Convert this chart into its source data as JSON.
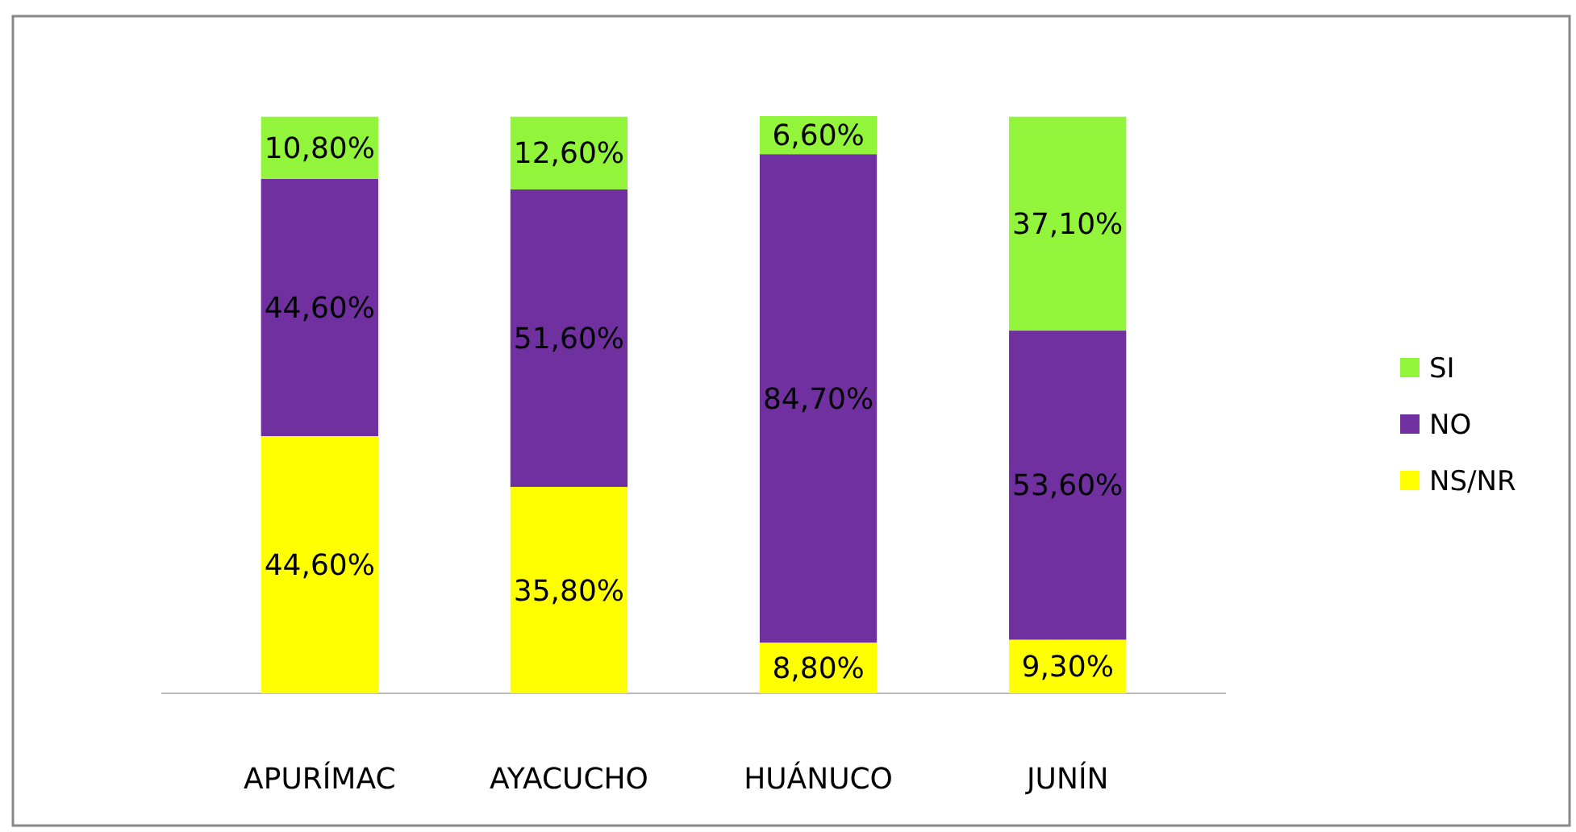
{
  "chart_data": {
    "type": "bar",
    "stacked": true,
    "categories": [
      "APURÍMAC",
      "AYACUCHO",
      "HUÁNUCO",
      "JUNÍN"
    ],
    "series": [
      {
        "name": "NS/NR",
        "color": "#ffff00",
        "values": [
          44.6,
          35.8,
          8.8,
          9.3
        ],
        "value_labels": [
          "44,60%",
          "35,80%",
          "8,80%",
          "9,30%"
        ]
      },
      {
        "name": "NO",
        "color": "#7030a0",
        "values": [
          44.6,
          51.6,
          84.7,
          53.6
        ],
        "value_labels": [
          "44,60%",
          "51,60%",
          "84,70%",
          "53,60%"
        ]
      },
      {
        "name": "SI",
        "color": "#92f53c",
        "values": [
          10.8,
          12.6,
          6.6,
          37.1
        ],
        "value_labels": [
          "10,80%",
          "12,60%",
          "6,60%",
          "37,10%"
        ]
      }
    ],
    "legend": "right"
  }
}
